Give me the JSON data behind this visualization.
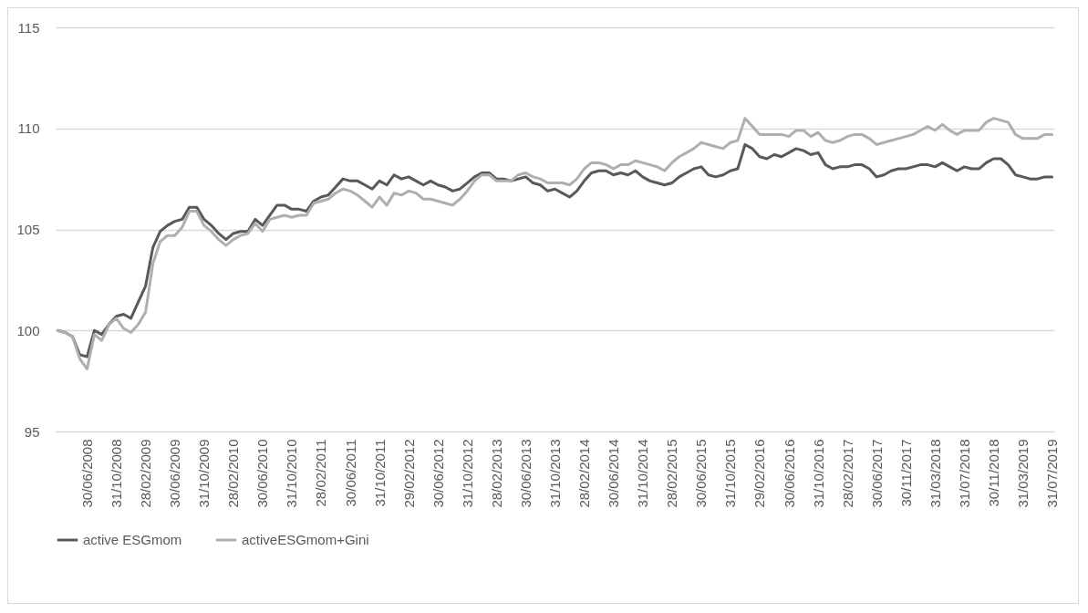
{
  "chart_data": {
    "type": "line",
    "categories": [
      null,
      null,
      null,
      null,
      "30/06/2008",
      null,
      null,
      null,
      "31/10/2008",
      null,
      null,
      null,
      "28/02/2009",
      null,
      null,
      null,
      "30/06/2009",
      null,
      null,
      null,
      "31/10/2009",
      null,
      null,
      null,
      "28/02/2010",
      null,
      null,
      null,
      "30/06/2010",
      null,
      null,
      null,
      "31/10/2010",
      null,
      null,
      null,
      "28/02/2011",
      null,
      null,
      null,
      "30/06/2011",
      null,
      null,
      null,
      "31/10/2011",
      null,
      null,
      null,
      "29/02/2012",
      null,
      null,
      null,
      "30/06/2012",
      null,
      null,
      null,
      "31/10/2012",
      null,
      null,
      null,
      "28/02/2013",
      null,
      null,
      null,
      "30/06/2013",
      null,
      null,
      null,
      "31/10/2013",
      null,
      null,
      null,
      "28/02/2014",
      null,
      null,
      null,
      "30/06/2014",
      null,
      null,
      null,
      "31/10/2014",
      null,
      null,
      null,
      "28/02/2015",
      null,
      null,
      null,
      "30/06/2015",
      null,
      null,
      null,
      "31/10/2015",
      null,
      null,
      null,
      "29/02/2016",
      null,
      null,
      null,
      "30/06/2016",
      null,
      null,
      null,
      "31/10/2016",
      null,
      null,
      null,
      "28/02/2017",
      null,
      null,
      null,
      "30/06/2017",
      null,
      null,
      null,
      "30/11/2017",
      null,
      null,
      null,
      "31/03/2018",
      null,
      null,
      null,
      "31/07/2018",
      null,
      null,
      null,
      "30/11/2018",
      null,
      null,
      null,
      "31/03/2019",
      null,
      null,
      null,
      "31/07/2019"
    ],
    "series": [
      {
        "name": "active ESGmom",
        "color": "#595959",
        "values": [
          100,
          99.9,
          99.7,
          98.8,
          98.7,
          100,
          99.8,
          100.3,
          100.7,
          100.8,
          100.6,
          101.4,
          102.2,
          104.1,
          104.9,
          105.2,
          105.4,
          105.5,
          106.1,
          106.1,
          105.5,
          105.2,
          104.8,
          104.5,
          104.8,
          104.9,
          104.9,
          105.5,
          105.2,
          105.7,
          106.2,
          106.2,
          106,
          106,
          105.9,
          106.4,
          106.6,
          106.7,
          107.1,
          107.5,
          107.4,
          107.4,
          107.2,
          107,
          107.4,
          107.2,
          107.7,
          107.5,
          107.6,
          107.4,
          107.2,
          107.4,
          107.2,
          107.1,
          106.9,
          107,
          107.3,
          107.6,
          107.8,
          107.8,
          107.5,
          107.5,
          107.4,
          107.5,
          107.6,
          107.3,
          107.2,
          106.9,
          107,
          106.8,
          106.6,
          106.9,
          107.4,
          107.8,
          107.9,
          107.9,
          107.7,
          107.8,
          107.7,
          107.9,
          107.6,
          107.4,
          107.3,
          107.2,
          107.3,
          107.6,
          107.8,
          108,
          108.1,
          107.7,
          107.6,
          107.7,
          107.9,
          108,
          109.2,
          109,
          108.6,
          108.5,
          108.7,
          108.6,
          108.8,
          109,
          108.9,
          108.7,
          108.8,
          108.2,
          108,
          108.1,
          108.1,
          108.2,
          108.2,
          108,
          107.6,
          107.7,
          107.9,
          108,
          108,
          108.1,
          108.2,
          108.2,
          108.1,
          108.3,
          108.1,
          107.9,
          108.1,
          108,
          108,
          108.3,
          108.5,
          108.5,
          108.2,
          107.7,
          107.6,
          107.5,
          107.5,
          107.6,
          107.6
        ]
      },
      {
        "name": "activeESGmom+Gini",
        "color": "#afafaf",
        "values": [
          100,
          99.9,
          99.7,
          98.6,
          98.1,
          99.8,
          99.5,
          100.3,
          100.6,
          100.1,
          99.9,
          100.3,
          100.9,
          103.3,
          104.4,
          104.7,
          104.7,
          105.1,
          105.9,
          105.9,
          105.2,
          104.9,
          104.5,
          104.2,
          104.5,
          104.7,
          104.8,
          105.3,
          104.9,
          105.5,
          105.6,
          105.7,
          105.6,
          105.7,
          105.7,
          106.3,
          106.4,
          106.5,
          106.8,
          107,
          106.9,
          106.7,
          106.4,
          106.1,
          106.6,
          106.2,
          106.8,
          106.7,
          106.9,
          106.8,
          106.5,
          106.5,
          106.4,
          106.3,
          106.2,
          106.5,
          106.9,
          107.4,
          107.7,
          107.7,
          107.4,
          107.4,
          107.4,
          107.7,
          107.8,
          107.6,
          107.5,
          107.3,
          107.3,
          107.3,
          107.2,
          107.5,
          108,
          108.3,
          108.3,
          108.2,
          108,
          108.2,
          108.2,
          108.4,
          108.3,
          108.2,
          108.1,
          107.9,
          108.3,
          108.6,
          108.8,
          109,
          109.3,
          109.2,
          109.1,
          109,
          109.3,
          109.4,
          110.5,
          110.1,
          109.7,
          109.7,
          109.7,
          109.7,
          109.6,
          109.9,
          109.9,
          109.6,
          109.8,
          109.4,
          109.3,
          109.4,
          109.6,
          109.7,
          109.7,
          109.5,
          109.2,
          109.3,
          109.4,
          109.5,
          109.6,
          109.7,
          109.9,
          110.1,
          109.9,
          110.2,
          109.9,
          109.7,
          109.9,
          109.9,
          109.9,
          110.3,
          110.5,
          110.4,
          110.3,
          109.7,
          109.5,
          109.5,
          109.5,
          109.7,
          109.7
        ]
      }
    ],
    "ylim": [
      95,
      115
    ],
    "yticks": [
      95,
      100,
      105,
      110,
      115
    ],
    "grid": "y",
    "legend": "bottom",
    "marker": "none",
    "line_style": "solid"
  }
}
